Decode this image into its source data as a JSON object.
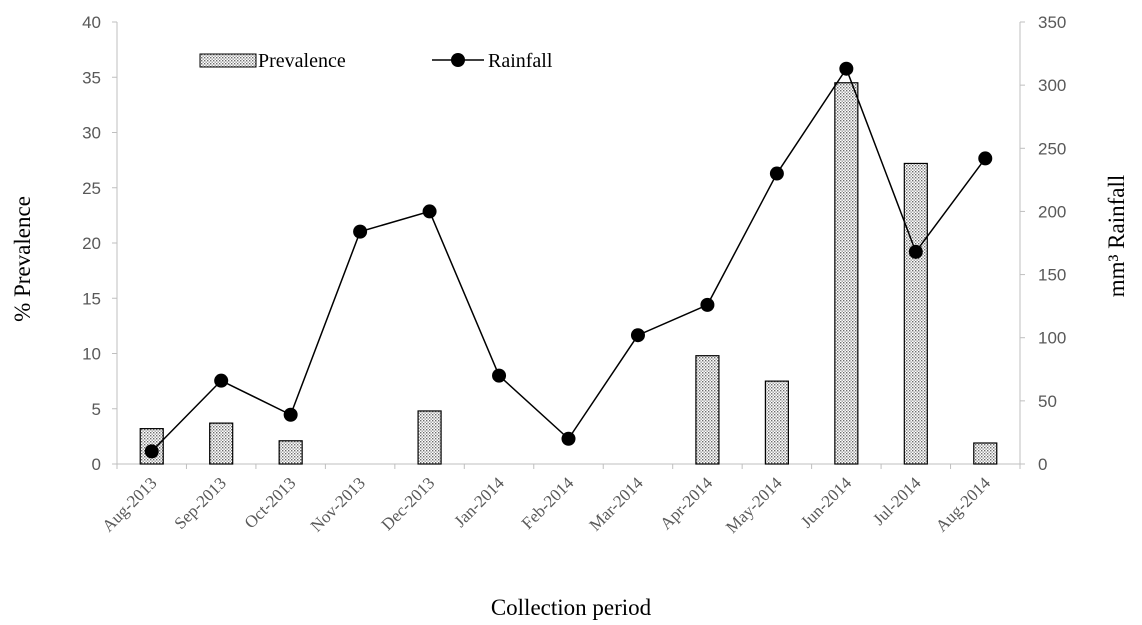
{
  "chart_data": {
    "type": "bar",
    "categories": [
      "Aug-2013",
      "Sep-2013",
      "Oct-2013",
      "Nov-2013",
      "Dec-2013",
      "Jan-2014",
      "Feb-2014",
      "Mar-2014",
      "Apr-2014",
      "May-2014",
      "Jun-2014",
      "Jul-2014",
      "Aug-2014"
    ],
    "series": [
      {
        "name": "Prevalence",
        "chart_type": "bar",
        "axis": "left",
        "pattern": "dotted",
        "values": [
          3.2,
          3.7,
          2.1,
          0,
          4.8,
          0,
          0,
          0,
          9.8,
          7.5,
          34.5,
          27.2,
          1.9
        ]
      },
      {
        "name": "Rainfall",
        "chart_type": "line",
        "axis": "right",
        "marker": "circle",
        "color": "#000000",
        "values": [
          10,
          66,
          39,
          184,
          200,
          70,
          20,
          102,
          126,
          230,
          313,
          168,
          242
        ]
      }
    ],
    "xlabel": "Collection period",
    "ylabel": "% Prevalence",
    "y2label": "mm³ Rainfall",
    "ylim": [
      0,
      40
    ],
    "y2lim": [
      0,
      350
    ],
    "yticks": [
      "0",
      "5",
      "10",
      "15",
      "20",
      "25",
      "30",
      "35",
      "40"
    ],
    "y2ticks": [
      "0",
      "50",
      "100",
      "150",
      "200",
      "250",
      "300",
      "350"
    ],
    "grid": false,
    "legend_position": "top-left"
  }
}
